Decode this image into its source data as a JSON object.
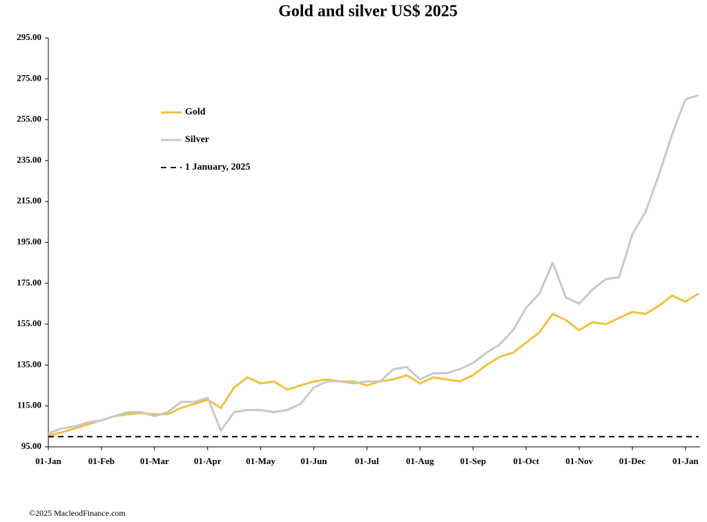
{
  "chart_data": {
    "type": "line",
    "title": "Gold and silver  US$ 2025",
    "footer": "©2025 MacleodFinance.com",
    "categories": [
      "01-Jan",
      null,
      null,
      null,
      "01-Feb",
      null,
      null,
      null,
      "01-Mar",
      null,
      null,
      null,
      "01-Apr",
      null,
      null,
      null,
      "01-May",
      null,
      null,
      null,
      "01-Jun",
      null,
      null,
      null,
      "01-Jul",
      null,
      null,
      null,
      "01-Aug",
      null,
      null,
      null,
      "01-Sep",
      null,
      null,
      null,
      "01-Oct",
      null,
      null,
      null,
      "01-Nov",
      null,
      null,
      null,
      "01-Dec",
      null,
      null,
      null,
      "01-Jan",
      null
    ],
    "series": [
      {
        "name": "Gold",
        "color": "#f0c040",
        "dash": false,
        "values": [
          100.5,
          102,
          104,
          106,
          108,
          110,
          111,
          111.5,
          111,
          111,
          114,
          116,
          118,
          114,
          124,
          129,
          126,
          127,
          123,
          125,
          127,
          128,
          127,
          127,
          125,
          127,
          128,
          130,
          126,
          129,
          128,
          127,
          130,
          135,
          139,
          141,
          146,
          151,
          160,
          157,
          152,
          156,
          155,
          158,
          161,
          160,
          164,
          169,
          166,
          170
        ]
      },
      {
        "name": "Silver",
        "color": "#c8c8c8",
        "dash": false,
        "values": [
          101.5,
          104,
          105,
          107,
          108,
          110,
          112,
          112,
          110,
          112,
          117,
          117,
          119,
          103,
          112,
          113,
          113,
          112,
          113,
          116,
          124,
          127,
          127,
          126,
          127,
          127,
          133,
          134,
          128,
          131,
          131,
          133,
          136,
          141,
          145,
          152,
          163,
          170,
          185,
          168,
          165,
          172,
          177,
          178,
          199,
          210,
          228,
          248,
          265,
          267
        ]
      },
      {
        "name": "1 January, 2025",
        "color": "#000000",
        "dash": true,
        "values": [
          100,
          100,
          100,
          100,
          100,
          100,
          100,
          100,
          100,
          100,
          100,
          100,
          100,
          100,
          100,
          100,
          100,
          100,
          100,
          100,
          100,
          100,
          100,
          100,
          100,
          100,
          100,
          100,
          100,
          100,
          100,
          100,
          100,
          100,
          100,
          100,
          100,
          100,
          100,
          100,
          100,
          100,
          100,
          100,
          100,
          100,
          100,
          100,
          100,
          100
        ]
      }
    ],
    "ylim": [
      95,
      295
    ],
    "yticks": [
      {
        "value": 95,
        "label": "95.00"
      },
      {
        "value": 115,
        "label": "115.00"
      },
      {
        "value": 135,
        "label": "135.00"
      },
      {
        "value": 155,
        "label": "155.00"
      },
      {
        "value": 175,
        "label": "175.00"
      },
      {
        "value": 195,
        "label": "195.00"
      },
      {
        "value": 215,
        "label": "215.00"
      },
      {
        "value": 235,
        "label": "235.00"
      },
      {
        "value": 255,
        "label": "255.00"
      },
      {
        "value": 275,
        "label": "275.00"
      },
      {
        "value": 295,
        "label": "295.00"
      }
    ],
    "grid": false,
    "legend": "upper left"
  }
}
